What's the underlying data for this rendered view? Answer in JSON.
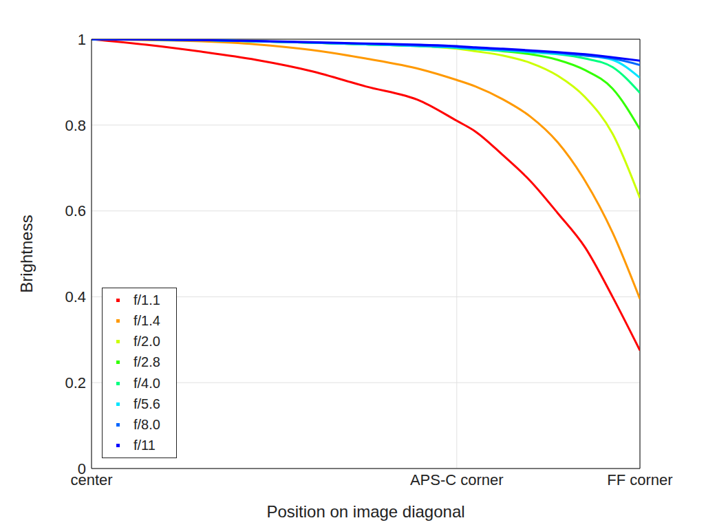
{
  "chart_data": {
    "type": "line",
    "x_label": "Position on image diagonal",
    "y_label": "Brightness",
    "x": [
      0,
      0.1,
      0.2,
      0.3,
      0.4,
      0.5,
      0.6,
      0.666,
      0.7,
      0.75,
      0.8,
      0.85,
      0.9,
      0.95,
      1
    ],
    "xlim": [
      0,
      1
    ],
    "xticks": [
      {
        "value": 0,
        "label": "center"
      },
      {
        "value": 0.666,
        "label": "APS-C corner"
      },
      {
        "value": 1,
        "label": "FF corner"
      }
    ],
    "ylim": [
      0,
      1
    ],
    "yticks": [
      0,
      0.2,
      0.4,
      0.6,
      0.8,
      1
    ],
    "grid": true,
    "legend": "lower left",
    "series": [
      {
        "name": "f/1.1",
        "color": "#ff0000",
        "values": [
          1,
          0.987,
          0.971,
          0.952,
          0.926,
          0.89,
          0.856,
          0.81,
          0.785,
          0.73,
          0.67,
          0.595,
          0.515,
          0.4,
          0.275
        ]
      },
      {
        "name": "f/1.4",
        "color": "#ff9900",
        "values": [
          1,
          0.998,
          0.995,
          0.988,
          0.975,
          0.955,
          0.93,
          0.905,
          0.89,
          0.86,
          0.82,
          0.76,
          0.67,
          0.55,
          0.395
        ]
      },
      {
        "name": "f/2.0",
        "color": "#ccff00",
        "values": [
          1,
          0.999,
          0.998,
          0.995,
          0.992,
          0.988,
          0.984,
          0.978,
          0.972,
          0.962,
          0.945,
          0.915,
          0.865,
          0.78,
          0.63
        ]
      },
      {
        "name": "f/2.8",
        "color": "#33ff00",
        "values": [
          1,
          0.999,
          0.998,
          0.995,
          0.992,
          0.988,
          0.984,
          0.98,
          0.977,
          0.972,
          0.965,
          0.952,
          0.928,
          0.885,
          0.79
        ]
      },
      {
        "name": "f/4.0",
        "color": "#00ff80",
        "values": [
          1,
          0.999,
          0.998,
          0.995,
          0.992,
          0.988,
          0.984,
          0.98,
          0.977,
          0.974,
          0.97,
          0.965,
          0.955,
          0.935,
          0.875
        ]
      },
      {
        "name": "f/5.6",
        "color": "#00e5ff",
        "values": [
          1,
          0.999,
          0.998,
          0.995,
          0.992,
          0.988,
          0.984,
          0.98,
          0.977,
          0.974,
          0.97,
          0.966,
          0.962,
          0.952,
          0.91
        ]
      },
      {
        "name": "f/8.0",
        "color": "#0066ff",
        "values": [
          1,
          0.999,
          0.998,
          0.995,
          0.992,
          0.989,
          0.985,
          0.982,
          0.979,
          0.976,
          0.972,
          0.968,
          0.962,
          0.955,
          0.94
        ]
      },
      {
        "name": "f/11",
        "color": "#0000ff",
        "values": [
          1,
          0.999,
          0.998,
          0.996,
          0.993,
          0.99,
          0.987,
          0.984,
          0.981,
          0.978,
          0.974,
          0.97,
          0.965,
          0.958,
          0.95
        ]
      }
    ]
  }
}
